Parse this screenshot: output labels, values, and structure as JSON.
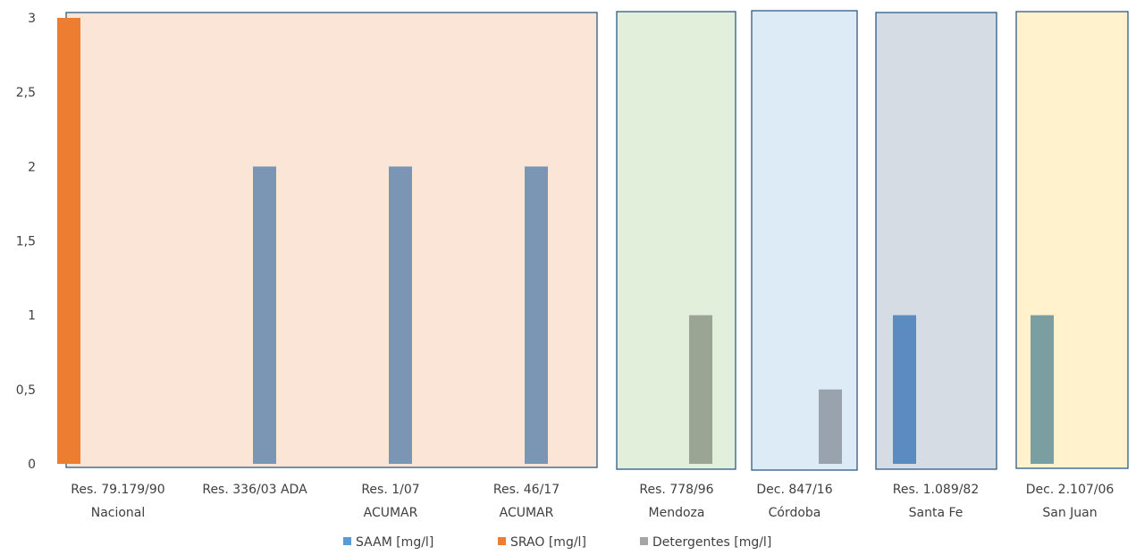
{
  "chart_data": {
    "type": "bar",
    "title": "",
    "xlabel": "",
    "ylabel": "",
    "ylim": [
      0,
      3
    ],
    "yticks": [
      "0",
      "0,5",
      "1",
      "1,5",
      "2",
      "2,5",
      "3"
    ],
    "ytick_values": [
      0,
      0.5,
      1,
      1.5,
      2,
      2.5,
      3
    ],
    "grid": false,
    "legend_position": "bottom",
    "categories": [
      {
        "line1": "Res. 79.179/90",
        "line2": "Nacional"
      },
      {
        "line1": "Res. 336/03 ADA",
        "line2": ""
      },
      {
        "line1": "Res. 1/07",
        "line2": "ACUMAR"
      },
      {
        "line1": "Res. 46/17",
        "line2": "ACUMAR"
      },
      {
        "line1": "Res. 778/96",
        "line2": "Mendoza"
      },
      {
        "line1": "Dec. 847/16",
        "line2": "Córdoba"
      },
      {
        "line1": "Res. 1.089/82",
        "line2": "Santa Fe"
      },
      {
        "line1": "Dec. 2.107/06",
        "line2": "San Juan"
      }
    ],
    "series": [
      {
        "name": "SAAM [mg/l]",
        "color": "#5b9bd5",
        "values": [
          null,
          null,
          null,
          null,
          null,
          null,
          1,
          null
        ]
      },
      {
        "name": "SRAO [mg/l]",
        "color": "#ed7d31",
        "values": [
          3,
          null,
          null,
          null,
          null,
          null,
          null,
          null
        ]
      },
      {
        "name": "Detergentes [mg/l]",
        "color": "#a5a5a5",
        "values": [
          null,
          2,
          2,
          2,
          1,
          0.5,
          null,
          1
        ]
      }
    ],
    "regions": [
      {
        "from": 0,
        "to": 3,
        "fill": "#fbe5d6",
        "bar_tint": "#7a96b4"
      },
      {
        "from": 4,
        "to": 4,
        "fill": "#e2efda",
        "bar_tint": "#9aa593"
      },
      {
        "from": 5,
        "to": 5,
        "fill": "#ddebf7",
        "bar_tint": "#98a3ae"
      },
      {
        "from": 6,
        "to": 6,
        "fill": "#d6dce4",
        "bar_tint": "#5b8bc0"
      },
      {
        "from": 7,
        "to": 7,
        "fill": "#fff2cc",
        "bar_tint": "#7b9ea1"
      }
    ],
    "region_border_color": "#2e5a87"
  }
}
